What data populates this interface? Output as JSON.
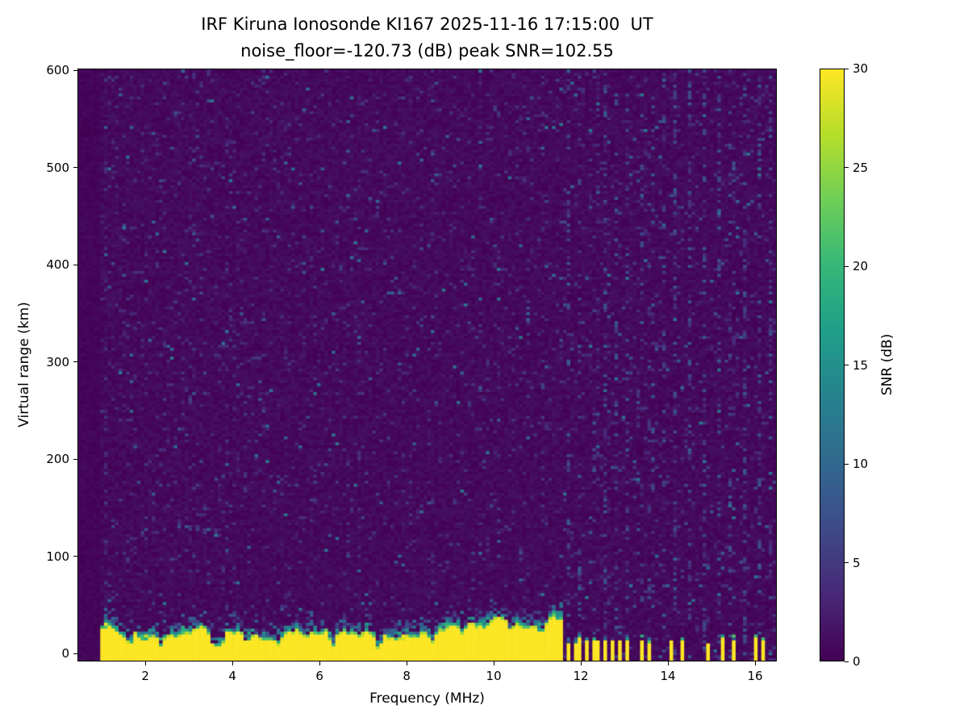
{
  "figure": {
    "title": "IRF Kiruna Ionosonde KI167 2025-11-16 17:15:00  UT",
    "subtitle": "noise_floor=-120.73 (dB) peak SNR=102.55"
  },
  "chart_data": {
    "type": "heatmap",
    "title": "IRF Kiruna Ionosonde KI167 2025-11-16 17:15:00  UT",
    "subtitle": "noise_floor=-120.73 (dB) peak SNR=102.55",
    "station": "KI167",
    "timestamp_ut": "2025-11-16 17:15:00",
    "noise_floor_db": -120.73,
    "peak_snr_db": 102.55,
    "xlabel": "Frequency (MHz)",
    "ylabel": "Virtual range (km)",
    "xlim": [
      0.44,
      16.5
    ],
    "ylim": [
      -8,
      602
    ],
    "xticks": [
      2,
      4,
      6,
      8,
      10,
      12,
      14,
      16
    ],
    "yticks": [
      0,
      100,
      200,
      300,
      400,
      500,
      600
    ],
    "grid": false,
    "colormap": "viridis",
    "colorbar": {
      "label": "SNR (dB)",
      "min": 0,
      "max": 30,
      "ticks": [
        0,
        5,
        10,
        15,
        20,
        25,
        30
      ]
    },
    "features": {
      "background": {
        "snr_db_typical": 1,
        "speckle_snr_db_max": 12,
        "data_start_mhz": 0.92
      },
      "ground_clutter_band": {
        "freq_range_mhz": [
          0.95,
          11.62
        ],
        "top_km_range": [
          8,
          40
        ],
        "snr_db": 30,
        "notches": [
          {
            "freq_mhz": 1.6,
            "depth_km": 10
          },
          {
            "freq_mhz": 2.35,
            "depth_km": 12
          },
          {
            "freq_mhz": 3.55,
            "depth_km": 18
          },
          {
            "freq_mhz": 3.72,
            "depth_km": 14
          },
          {
            "freq_mhz": 4.3,
            "depth_km": 12
          },
          {
            "freq_mhz": 5.05,
            "depth_km": 8
          },
          {
            "freq_mhz": 6.3,
            "depth_km": 16
          },
          {
            "freq_mhz": 6.95,
            "depth_km": 9
          },
          {
            "freq_mhz": 7.35,
            "depth_km": 15
          },
          {
            "freq_mhz": 8.6,
            "depth_km": 8
          },
          {
            "freq_mhz": 9.3,
            "depth_km": 9
          },
          {
            "freq_mhz": 10.4,
            "depth_km": 11
          },
          {
            "freq_mhz": 11.1,
            "depth_km": 10
          }
        ]
      },
      "pulsed_bars": {
        "snr_db": 30,
        "height_km_range": [
          12,
          19
        ],
        "width_mhz": 0.08,
        "centers_mhz": [
          11.72,
          11.86,
          12.0,
          12.14,
          12.28,
          12.42,
          12.56,
          12.72,
          12.9,
          13.06,
          13.42,
          13.56,
          14.12,
          14.36,
          14.92,
          15.28,
          15.54,
          16.04,
          16.18
        ]
      },
      "interference_columns_mhz": [
        11.72,
        12.0,
        12.28,
        12.56,
        12.84,
        13.1,
        13.38,
        13.64,
        13.9,
        14.18,
        14.5,
        14.85,
        15.2,
        15.48,
        15.78,
        16.1,
        16.35
      ],
      "echo_trace": {
        "freq_range_mhz": [
          2.62,
          3.68
        ],
        "range_km_start_end": [
          134,
          123
        ],
        "snr_db_max": 12
      }
    }
  }
}
